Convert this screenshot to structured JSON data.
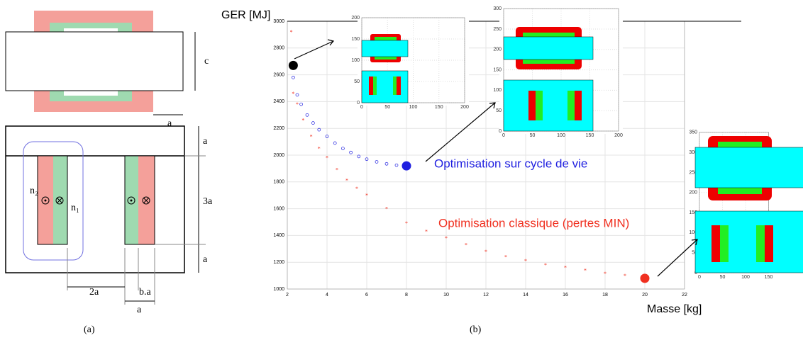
{
  "panel_a": {
    "labels": {
      "c": "c",
      "a_top": "a",
      "a_right1": "a",
      "three_a": "3a",
      "a_right2": "a",
      "two_a": "2a",
      "b_a": "b.a",
      "a_bottom": "a",
      "n2": "n₂",
      "n1": "n₁"
    },
    "caption": "(a)"
  },
  "chart_data": {
    "type": "scatter",
    "caption": "(b)",
    "ylabel": "GER [MJ]",
    "xlabel": "Masse [kg]",
    "xlim": [
      2,
      22
    ],
    "xticks": [
      2,
      4,
      6,
      8,
      10,
      12,
      14,
      16,
      18,
      20,
      22
    ],
    "ylim": [
      1000,
      3000
    ],
    "yticks": [
      1000,
      1200,
      1400,
      1600,
      1800,
      2000,
      2200,
      2400,
      2600,
      2800,
      3000
    ],
    "grid": true,
    "series": [
      {
        "name": "Optimisation sur cycle de vie",
        "color": "#2020e0",
        "x": [
          2.3,
          2.5,
          2.7,
          3.0,
          3.3,
          3.6,
          4.0,
          4.4,
          4.8,
          5.2,
          5.6,
          6.0,
          6.5,
          7.0,
          7.5,
          8.0
        ],
        "values": [
          2580,
          2450,
          2380,
          2300,
          2240,
          2190,
          2140,
          2090,
          2050,
          2020,
          1990,
          1970,
          1950,
          1935,
          1925,
          1920
        ]
      },
      {
        "name": "Optimisation classique (pertes MIN)",
        "color": "#f03020",
        "x": [
          2.2,
          2.3,
          2.5,
          2.8,
          3.2,
          3.6,
          4.0,
          4.5,
          5.0,
          5.5,
          6,
          7,
          8,
          9,
          10,
          11,
          12,
          13,
          14,
          15,
          16,
          17,
          18,
          19,
          20
        ],
        "values": [
          2920,
          2460,
          2380,
          2260,
          2140,
          2050,
          1980,
          1890,
          1810,
          1750,
          1700,
          1600,
          1490,
          1430,
          1380,
          1330,
          1280,
          1240,
          1210,
          1180,
          1160,
          1140,
          1115,
          1100,
          1080
        ]
      }
    ],
    "markers": {
      "x": [
        2.3,
        8,
        20
      ],
      "values": [
        2670,
        1920,
        1080
      ],
      "colors": [
        "#000000",
        "#2020e0",
        "#f03020"
      ]
    },
    "insets": [
      {
        "xticks": [
          0,
          50,
          100,
          150,
          200
        ],
        "yticks": [
          0,
          50,
          100,
          150,
          200
        ]
      },
      {
        "xticks": [
          0,
          50,
          100,
          150,
          200
        ],
        "yticks": [
          0,
          50,
          100,
          150,
          200,
          250,
          300
        ]
      },
      {
        "xticks": [
          0,
          50,
          100,
          150
        ],
        "yticks": [
          0,
          50,
          100,
          150,
          200,
          250,
          300,
          350
        ]
      }
    ]
  }
}
